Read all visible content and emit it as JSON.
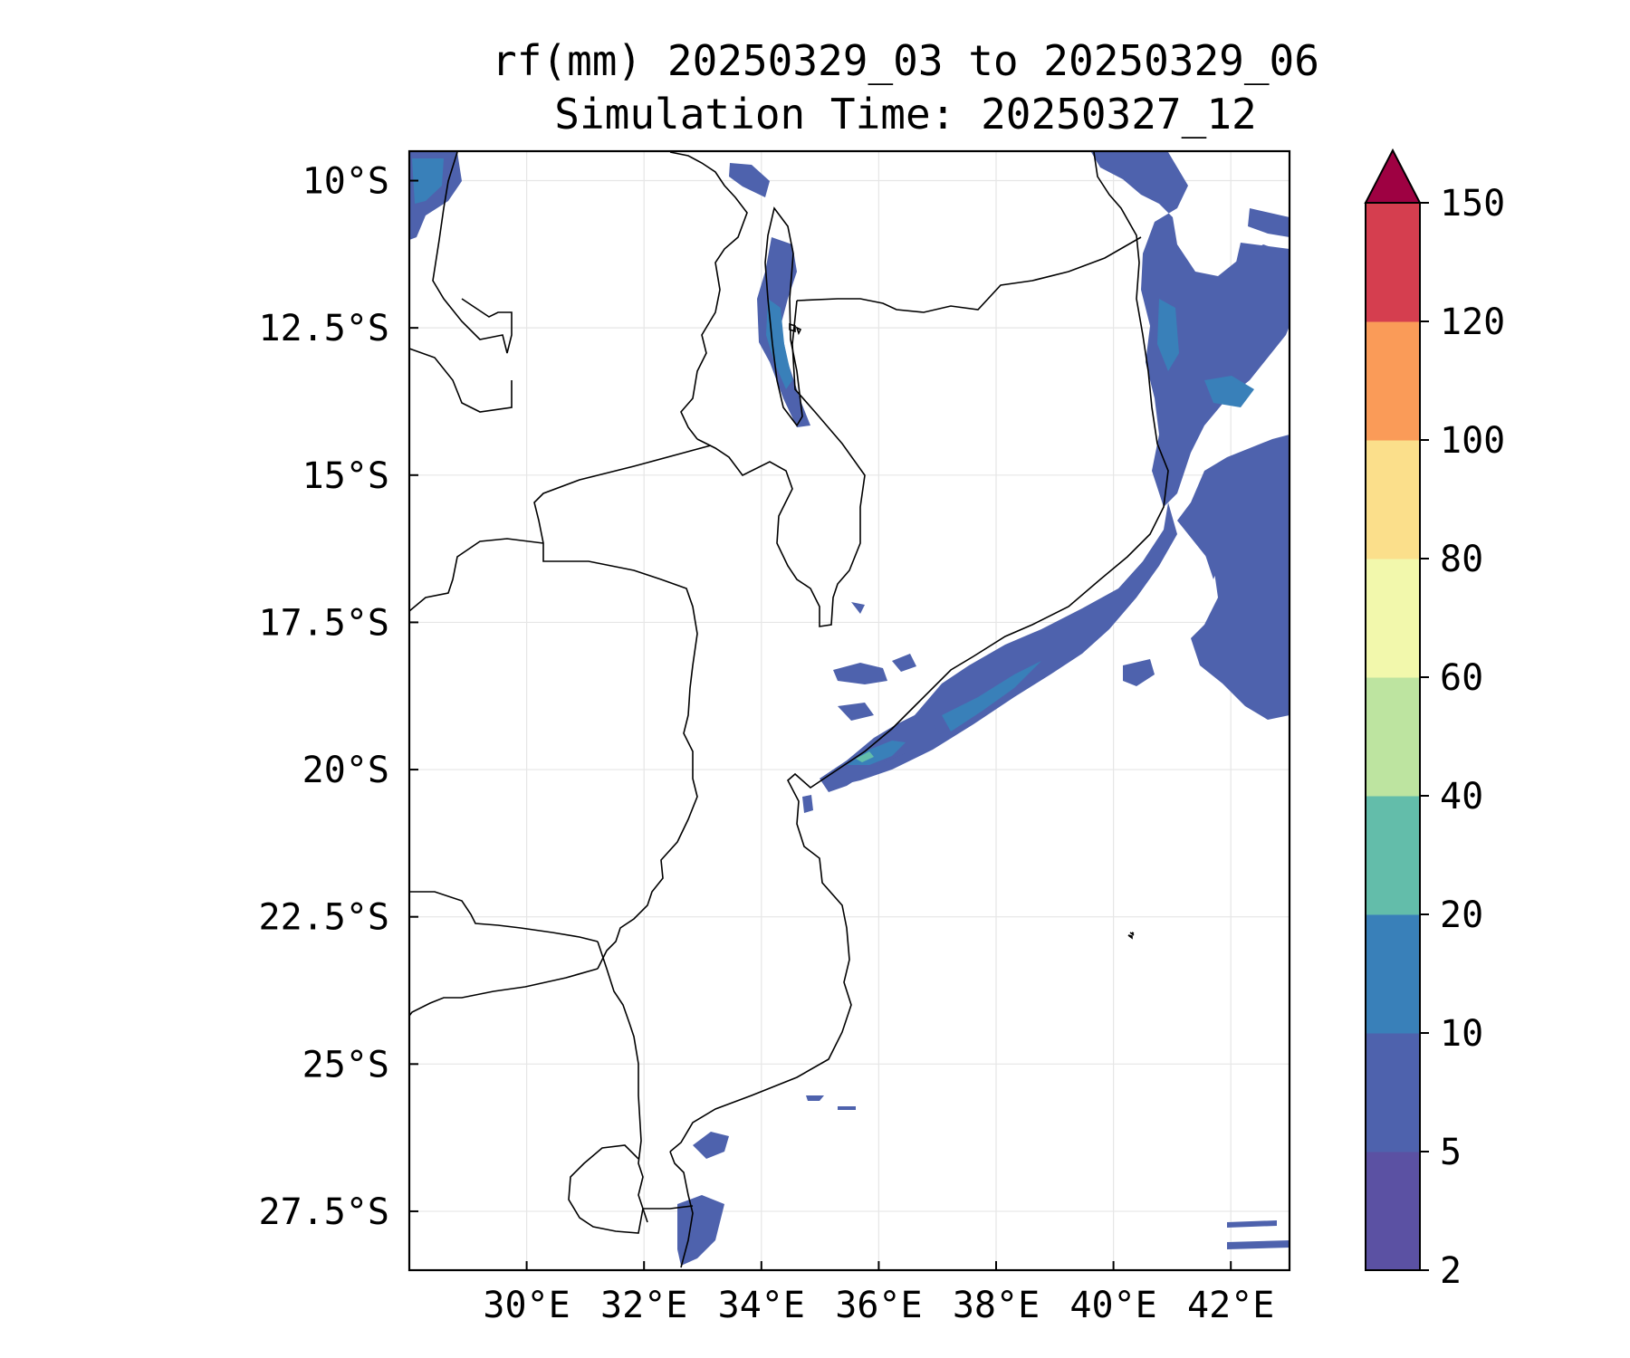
{
  "title": {
    "line1": "rf(mm) 20250329_03 to 20250329_06",
    "line2": "Simulation Time: 20250327_12"
  },
  "map": {
    "lon_range": [
      28.0,
      43.0
    ],
    "lat_range": [
      -28.5,
      -9.5
    ],
    "x_ticks": [
      "30°E",
      "32°E",
      "34°E",
      "36°E",
      "38°E",
      "40°E",
      "42°E"
    ],
    "x_tick_values": [
      30,
      32,
      34,
      36,
      38,
      40,
      42
    ],
    "y_ticks": [
      "10°S",
      "12.5°S",
      "15°S",
      "17.5°S",
      "20°S",
      "22.5°S",
      "25°S",
      "27.5°S"
    ],
    "y_tick_values": [
      -10,
      -12.5,
      -15,
      -17.5,
      -20,
      -22.5,
      -25,
      -27.5
    ],
    "grid": true,
    "features": [
      "coastline",
      "country-borders",
      "lake-malawi"
    ]
  },
  "colorbar": {
    "levels": [
      "2",
      "5",
      "10",
      "20",
      "40",
      "60",
      "80",
      "100",
      "120",
      "150"
    ],
    "colors": [
      "#5b51a3",
      "#4e62ad",
      "#3980b9",
      "#63bdaa",
      "#bde4a0",
      "#f2f8ac",
      "#fbdf8b",
      "#fa9b58",
      "#d53e4f",
      "#9e0142"
    ],
    "extend": "max"
  },
  "rain_fields": [
    {
      "region": "Mozambique Channel coast near Beira / Zambezi delta",
      "max_class": "20-40"
    },
    {
      "region": "northern Mozambique coast and offshore east of 40°E",
      "max_class": "10-20"
    },
    {
      "region": "Lake Malawi northern shore",
      "max_class": "10-20"
    },
    {
      "region": "Maputo bay",
      "max_class": "5-10"
    }
  ]
}
